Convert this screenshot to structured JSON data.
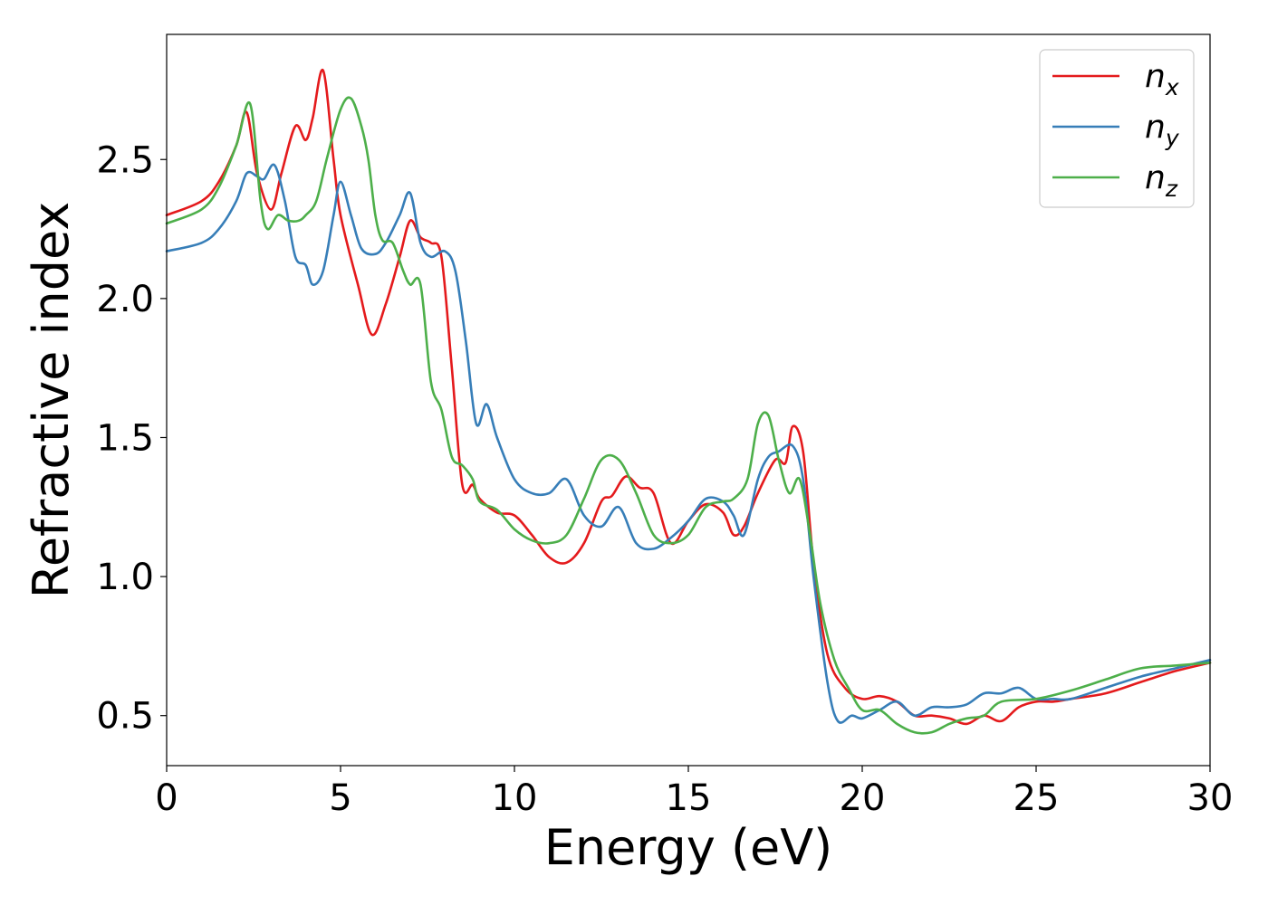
{
  "chart_data": {
    "type": "line",
    "xlabel": "Energy (eV)",
    "ylabel": "Refractive index",
    "xlim": [
      0,
      30
    ],
    "ylim": [
      0.32,
      2.95
    ],
    "xticks": [
      0,
      5,
      10,
      15,
      20,
      25,
      30
    ],
    "xtick_labels": [
      "0",
      "5",
      "10",
      "15",
      "20",
      "25",
      "30"
    ],
    "yticks": [
      0.5,
      1.0,
      1.5,
      2.0,
      2.5
    ],
    "ytick_labels": [
      "0.5",
      "1.0",
      "1.5",
      "2.0",
      "2.5"
    ],
    "grid": false,
    "legend_position": "top-right",
    "series": [
      {
        "name": "n",
        "subscript": "x",
        "color": "#e41a1c",
        "x": [
          0,
          1,
          1.5,
          2.0,
          2.3,
          2.6,
          3.0,
          3.3,
          3.7,
          4.0,
          4.2,
          4.5,
          4.8,
          5.0,
          5.5,
          5.9,
          6.3,
          6.7,
          7.0,
          7.3,
          7.6,
          7.9,
          8.2,
          8.5,
          8.8,
          9.0,
          9.5,
          10.0,
          10.5,
          11.0,
          11.5,
          12.0,
          12.5,
          12.8,
          13.2,
          13.6,
          14.0,
          14.5,
          15.0,
          15.5,
          16.0,
          16.3,
          16.6,
          17.0,
          17.5,
          17.8,
          18.0,
          18.3,
          18.6,
          19.0,
          19.5,
          20.0,
          20.5,
          21.0,
          21.5,
          22.0,
          22.5,
          23.0,
          23.5,
          24.0,
          24.5,
          25.0,
          25.5,
          26.0,
          27.0,
          28.0,
          29.0,
          30.0
        ],
        "y": [
          2.3,
          2.35,
          2.42,
          2.55,
          2.67,
          2.45,
          2.32,
          2.45,
          2.62,
          2.57,
          2.65,
          2.82,
          2.5,
          2.3,
          2.05,
          1.87,
          1.98,
          2.15,
          2.28,
          2.22,
          2.2,
          2.15,
          1.75,
          1.33,
          1.33,
          1.28,
          1.23,
          1.22,
          1.15,
          1.07,
          1.05,
          1.12,
          1.27,
          1.29,
          1.36,
          1.32,
          1.3,
          1.12,
          1.2,
          1.26,
          1.23,
          1.15,
          1.18,
          1.3,
          1.42,
          1.41,
          1.54,
          1.45,
          1.05,
          0.72,
          0.6,
          0.56,
          0.57,
          0.55,
          0.5,
          0.5,
          0.49,
          0.47,
          0.5,
          0.48,
          0.53,
          0.55,
          0.55,
          0.56,
          0.58,
          0.62,
          0.66,
          0.69
        ]
      },
      {
        "name": "n",
        "subscript": "y",
        "color": "#377eb8",
        "x": [
          0,
          1,
          1.5,
          2.0,
          2.3,
          2.6,
          2.8,
          3.1,
          3.4,
          3.7,
          4.0,
          4.2,
          4.5,
          4.8,
          5.0,
          5.3,
          5.6,
          6.0,
          6.3,
          6.7,
          7.0,
          7.3,
          7.6,
          8.0,
          8.3,
          8.6,
          8.9,
          9.2,
          9.5,
          10.0,
          10.5,
          11.0,
          11.5,
          12.0,
          12.5,
          13.0,
          13.5,
          14.0,
          14.5,
          15.0,
          15.5,
          16.0,
          16.3,
          16.6,
          17.0,
          17.3,
          17.6,
          18.0,
          18.3,
          18.6,
          19.0,
          19.3,
          19.7,
          20.0,
          20.5,
          21.0,
          21.5,
          22.0,
          22.5,
          23.0,
          23.5,
          24.0,
          24.5,
          25.0,
          25.5,
          26.0,
          27.0,
          28.0,
          29.0,
          30.0
        ],
        "y": [
          2.17,
          2.2,
          2.25,
          2.35,
          2.45,
          2.44,
          2.43,
          2.48,
          2.35,
          2.15,
          2.12,
          2.05,
          2.1,
          2.3,
          2.42,
          2.3,
          2.18,
          2.16,
          2.2,
          2.3,
          2.38,
          2.2,
          2.15,
          2.17,
          2.1,
          1.85,
          1.55,
          1.62,
          1.5,
          1.35,
          1.3,
          1.3,
          1.35,
          1.22,
          1.18,
          1.25,
          1.12,
          1.1,
          1.14,
          1.2,
          1.28,
          1.27,
          1.22,
          1.15,
          1.35,
          1.43,
          1.45,
          1.47,
          1.35,
          1.0,
          0.62,
          0.48,
          0.5,
          0.49,
          0.52,
          0.55,
          0.5,
          0.53,
          0.53,
          0.54,
          0.58,
          0.58,
          0.6,
          0.56,
          0.56,
          0.56,
          0.6,
          0.64,
          0.67,
          0.7
        ]
      },
      {
        "name": "n",
        "subscript": "z",
        "color": "#4daf4a",
        "x": [
          0,
          1,
          1.5,
          2.0,
          2.4,
          2.7,
          2.9,
          3.2,
          3.5,
          3.8,
          4.0,
          4.3,
          4.6,
          5.0,
          5.3,
          5.6,
          5.8,
          6.0,
          6.2,
          6.5,
          6.8,
          7.0,
          7.3,
          7.6,
          7.9,
          8.2,
          8.5,
          8.8,
          9.0,
          9.5,
          10.0,
          10.5,
          11.0,
          11.5,
          12.0,
          12.5,
          13.0,
          13.5,
          14.0,
          14.5,
          15.0,
          15.5,
          16.0,
          16.3,
          16.7,
          17.0,
          17.3,
          17.6,
          17.9,
          18.2,
          18.5,
          18.8,
          19.2,
          19.6,
          20.0,
          20.5,
          21.0,
          21.5,
          22.0,
          22.5,
          23.0,
          23.5,
          24.0,
          25.0,
          26.0,
          27.0,
          28.0,
          29.0,
          30.0
        ],
        "y": [
          2.27,
          2.32,
          2.4,
          2.55,
          2.7,
          2.35,
          2.25,
          2.3,
          2.28,
          2.28,
          2.3,
          2.35,
          2.5,
          2.68,
          2.72,
          2.62,
          2.5,
          2.3,
          2.21,
          2.2,
          2.1,
          2.05,
          2.05,
          1.7,
          1.6,
          1.43,
          1.4,
          1.35,
          1.27,
          1.24,
          1.17,
          1.13,
          1.12,
          1.15,
          1.28,
          1.42,
          1.42,
          1.3,
          1.15,
          1.12,
          1.15,
          1.25,
          1.27,
          1.28,
          1.35,
          1.55,
          1.58,
          1.42,
          1.3,
          1.35,
          1.15,
          0.9,
          0.7,
          0.6,
          0.52,
          0.52,
          0.47,
          0.44,
          0.44,
          0.47,
          0.49,
          0.5,
          0.55,
          0.56,
          0.59,
          0.63,
          0.67,
          0.68,
          0.69
        ]
      }
    ]
  }
}
